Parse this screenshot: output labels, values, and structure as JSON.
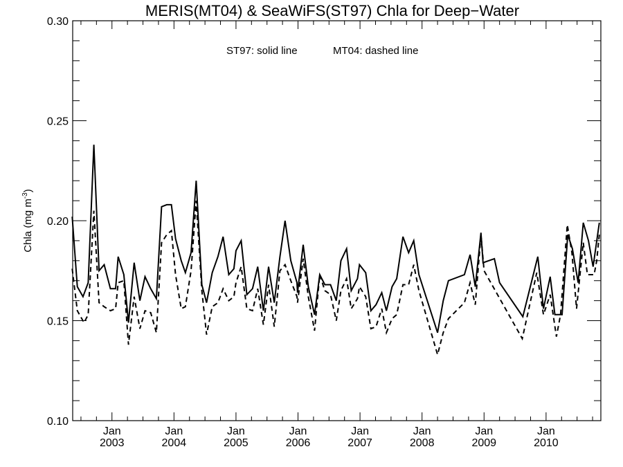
{
  "chart_data": {
    "type": "line",
    "title": "MERIS(MT04) & SeaWiFS(ST97)  Chla for Deep−Water",
    "legend_text": {
      "solid": "ST97: solid line",
      "dashed": "MT04: dashed line"
    },
    "legend_placement": "top-center",
    "xlabel": "",
    "ylabel": "Chla (mg m",
    "ylabel_superscript": "-3",
    "ylabel_suffix": ")",
    "ylim": [
      0.1,
      0.3
    ],
    "yticks": [
      {
        "value": 0.1,
        "label": "0.10"
      },
      {
        "value": 0.15,
        "label": "0.15"
      },
      {
        "value": 0.2,
        "label": "0.20"
      },
      {
        "value": 0.25,
        "label": "0.25"
      },
      {
        "value": 0.3,
        "label": "0.30"
      }
    ],
    "y_minor_step": 0.01,
    "x_unit": "months since Jan 2003",
    "xlim": [
      -7.6,
      94.6
    ],
    "xticks": [
      {
        "month": 0,
        "line1": "Jan",
        "line2": "2003"
      },
      {
        "month": 12,
        "line1": "Jan",
        "line2": "2004"
      },
      {
        "month": 24,
        "line1": "Jan",
        "line2": "2005"
      },
      {
        "month": 36,
        "line1": "Jan",
        "line2": "2006"
      },
      {
        "month": 48,
        "line1": "Jan",
        "line2": "2007"
      },
      {
        "month": 60,
        "line1": "Jan",
        "line2": "2008"
      },
      {
        "month": 72,
        "line1": "Jan",
        "line2": "2009"
      },
      {
        "month": 84,
        "line1": "Jan",
        "line2": "2010"
      }
    ],
    "x_minor_step": 3,
    "grid": false,
    "series": [
      {
        "name": "ST97",
        "style": "solid",
        "color": "#000000",
        "x": [
          -7.7,
          -6.7,
          -5.6,
          -4.6,
          -3.5,
          -2.5,
          -1.5,
          -0.3,
          0.7,
          1.2,
          2.3,
          3.2,
          4.3,
          5.4,
          6.4,
          7.5,
          8.6,
          9.6,
          10.6,
          11.5,
          12.3,
          13.4,
          14.2,
          15.3,
          16.3,
          17.4,
          18.3,
          19.4,
          20.5,
          21.5,
          22.6,
          23.6,
          24.0,
          25.0,
          26.1,
          27.2,
          28.2,
          29.3,
          30.3,
          31.4,
          32.5,
          33.5,
          34.6,
          35.8,
          35.9,
          37.0,
          38.0,
          39.2,
          40.2,
          41.2,
          42.3,
          43.4,
          44.3,
          45.4,
          46.3,
          47.5,
          47.9,
          49.1,
          50.1,
          51.1,
          52.2,
          53.1,
          54.2,
          55.1,
          56.3,
          57.4,
          58.4,
          59.4,
          63.0,
          64.1,
          65.1,
          68.2,
          69.3,
          70.3,
          71.4,
          71.8,
          74.0,
          75.0,
          79.5,
          82.4,
          83.5,
          84.8,
          85.7,
          87.1,
          88.2,
          89.1,
          90.2,
          91.2,
          92.2,
          93.1,
          94.3
        ],
        "values": [
          0.202,
          0.167,
          0.162,
          0.169,
          0.238,
          0.175,
          0.178,
          0.166,
          0.166,
          0.182,
          0.173,
          0.149,
          0.179,
          0.16,
          0.172,
          0.166,
          0.161,
          0.207,
          0.208,
          0.208,
          0.191,
          0.18,
          0.174,
          0.184,
          0.22,
          0.168,
          0.159,
          0.174,
          0.182,
          0.192,
          0.173,
          0.176,
          0.185,
          0.19,
          0.163,
          0.166,
          0.177,
          0.155,
          0.177,
          0.159,
          0.182,
          0.2,
          0.18,
          0.169,
          0.164,
          0.188,
          0.167,
          0.153,
          0.173,
          0.168,
          0.168,
          0.16,
          0.18,
          0.186,
          0.165,
          0.171,
          0.178,
          0.174,
          0.155,
          0.158,
          0.164,
          0.155,
          0.167,
          0.171,
          0.192,
          0.184,
          0.19,
          0.173,
          0.144,
          0.16,
          0.17,
          0.173,
          0.183,
          0.167,
          0.194,
          0.179,
          0.181,
          0.169,
          0.152,
          0.182,
          0.156,
          0.172,
          0.153,
          0.153,
          0.193,
          0.186,
          0.169,
          0.199,
          0.19,
          0.177,
          0.199
        ]
      },
      {
        "name": "MT04",
        "style": "dashed",
        "color": "#000000",
        "x": [
          -7.7,
          -6.7,
          -5.4,
          -4.6,
          -3.5,
          -2.5,
          -1.5,
          -0.3,
          0.7,
          1.2,
          2.3,
          3.2,
          4.3,
          5.4,
          6.4,
          7.5,
          8.6,
          9.6,
          10.6,
          11.5,
          12.3,
          13.4,
          14.2,
          15.3,
          16.3,
          17.4,
          18.3,
          19.4,
          20.5,
          21.5,
          22.6,
          23.6,
          24.0,
          25.0,
          26.1,
          27.2,
          28.2,
          29.3,
          30.3,
          31.4,
          32.5,
          33.5,
          34.6,
          35.8,
          35.9,
          37.0,
          38.0,
          39.2,
          40.2,
          41.2,
          42.3,
          43.4,
          44.3,
          45.4,
          46.3,
          47.5,
          47.9,
          49.1,
          50.1,
          51.1,
          52.2,
          53.1,
          54.2,
          55.1,
          56.3,
          57.4,
          58.4,
          59.4,
          63.0,
          64.1,
          65.1,
          68.2,
          69.3,
          70.3,
          71.4,
          72.0,
          79.4,
          82.2,
          83.5,
          84.8,
          86.0,
          86.8,
          88.1,
          89.0,
          89.9,
          91.2,
          92.0,
          93.3,
          93.8,
          94.3
        ],
        "values": [
          0.176,
          0.155,
          0.149,
          0.153,
          0.205,
          0.159,
          0.157,
          0.155,
          0.156,
          0.169,
          0.17,
          0.138,
          0.162,
          0.146,
          0.155,
          0.154,
          0.144,
          0.189,
          0.193,
          0.195,
          0.173,
          0.156,
          0.157,
          0.175,
          0.21,
          0.165,
          0.143,
          0.157,
          0.159,
          0.166,
          0.16,
          0.162,
          0.169,
          0.177,
          0.156,
          0.155,
          0.166,
          0.148,
          0.168,
          0.147,
          0.175,
          0.178,
          0.17,
          0.162,
          0.159,
          0.181,
          0.162,
          0.145,
          0.173,
          0.165,
          0.163,
          0.15,
          0.165,
          0.171,
          0.156,
          0.161,
          0.167,
          0.162,
          0.146,
          0.147,
          0.156,
          0.144,
          0.151,
          0.153,
          0.168,
          0.168,
          0.178,
          0.165,
          0.133,
          0.144,
          0.151,
          0.159,
          0.169,
          0.158,
          0.193,
          0.175,
          0.141,
          0.174,
          0.153,
          0.163,
          0.142,
          0.153,
          0.198,
          0.184,
          0.156,
          0.189,
          0.173,
          0.173,
          0.18,
          0.193
        ]
      }
    ]
  }
}
